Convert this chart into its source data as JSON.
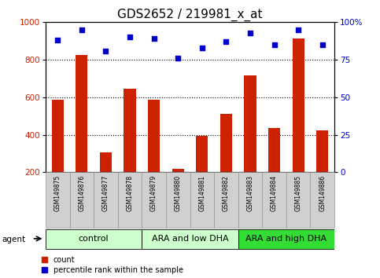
{
  "title": "GDS2652 / 219981_x_at",
  "samples": [
    "GSM149875",
    "GSM149876",
    "GSM149877",
    "GSM149878",
    "GSM149879",
    "GSM149880",
    "GSM149881",
    "GSM149882",
    "GSM149883",
    "GSM149884",
    "GSM149885",
    "GSM149886"
  ],
  "counts": [
    585,
    825,
    305,
    645,
    588,
    220,
    395,
    510,
    715,
    435,
    915,
    425
  ],
  "percentiles": [
    88,
    95,
    81,
    90,
    89,
    76,
    83,
    87,
    93,
    85,
    95,
    85
  ],
  "groups": [
    {
      "label": "control",
      "start": 0,
      "end": 3
    },
    {
      "label": "ARA and low DHA",
      "start": 4,
      "end": 7
    },
    {
      "label": "ARA and high DHA",
      "start": 8,
      "end": 11
    }
  ],
  "group_colors": [
    "#ccffcc",
    "#ccffcc",
    "#33dd33"
  ],
  "bar_color": "#cc2200",
  "scatter_color": "#0000cc",
  "ylim_left": [
    200,
    1000
  ],
  "ylim_right": [
    0,
    100
  ],
  "yticks_left": [
    200,
    400,
    600,
    800,
    1000
  ],
  "yticks_right": [
    0,
    25,
    50,
    75,
    100
  ],
  "ytick_right_labels": [
    "0",
    "25",
    "50",
    "75",
    "100%"
  ],
  "grid_values": [
    400,
    600,
    800
  ],
  "title_fontsize": 11,
  "tick_fontsize": 7.5,
  "sample_fontsize": 5.5,
  "group_fontsize": 8,
  "legend_fontsize": 7,
  "agent_label": "agent"
}
